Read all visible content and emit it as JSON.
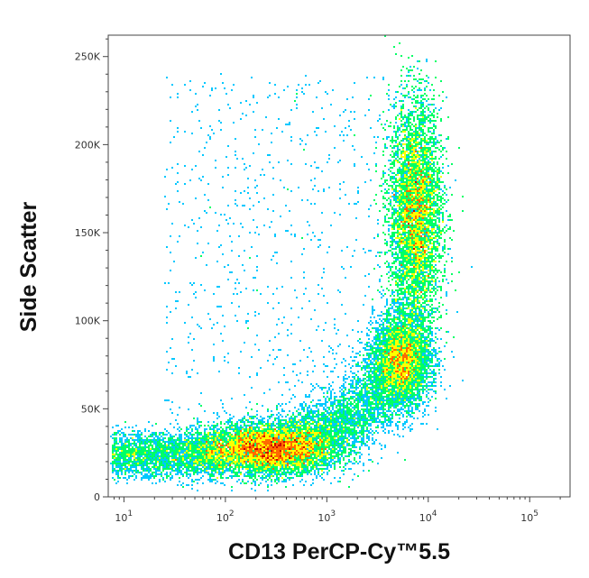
{
  "chart_data": {
    "type": "scatter",
    "subtype": "flow-cytometry density dot plot",
    "title": "",
    "xlabel": "CD13 PerCP-Cy™5.5",
    "ylabel": "Side Scatter",
    "x_scale": "log",
    "xlim": [
      7,
      250000
    ],
    "ylim": [
      0,
      262144
    ],
    "x_ticks": [
      {
        "value": 10,
        "base": "10",
        "exp": "1"
      },
      {
        "value": 100,
        "base": "10",
        "exp": "2"
      },
      {
        "value": 1000,
        "base": "10",
        "exp": "3"
      },
      {
        "value": 10000,
        "base": "10",
        "exp": "4"
      },
      {
        "value": 100000,
        "base": "10",
        "exp": "5"
      }
    ],
    "y_ticks": [
      {
        "value": 0,
        "label": "0"
      },
      {
        "value": 50000,
        "label": "50K"
      },
      {
        "value": 100000,
        "label": "100K"
      },
      {
        "value": 150000,
        "label": "150K"
      },
      {
        "value": 200000,
        "label": "200K"
      },
      {
        "value": 250000,
        "label": "250K"
      }
    ],
    "grid": false,
    "legend": "none",
    "color_scale": [
      "#0000ff",
      "#00c8ff",
      "#00ff66",
      "#ffff00",
      "#ff6a00",
      "#cc0000"
    ],
    "populations": [
      {
        "name_hint": "lymphocytes",
        "center": {
          "x": 250,
          "y": 27000
        },
        "spread": {
          "log_x": 0.32,
          "y": 7000
        },
        "peak_density": "high"
      },
      {
        "name_hint": "granulocytes",
        "center": {
          "x": 7500,
          "y": 160000
        },
        "spread": {
          "log_x": 0.13,
          "y": 32000
        },
        "peak_density": "medium"
      },
      {
        "name_hint": "monocytes",
        "center": {
          "x": 5500,
          "y": 78000
        },
        "spread": {
          "log_x": 0.14,
          "y": 13000
        },
        "peak_density": "medium"
      }
    ]
  }
}
